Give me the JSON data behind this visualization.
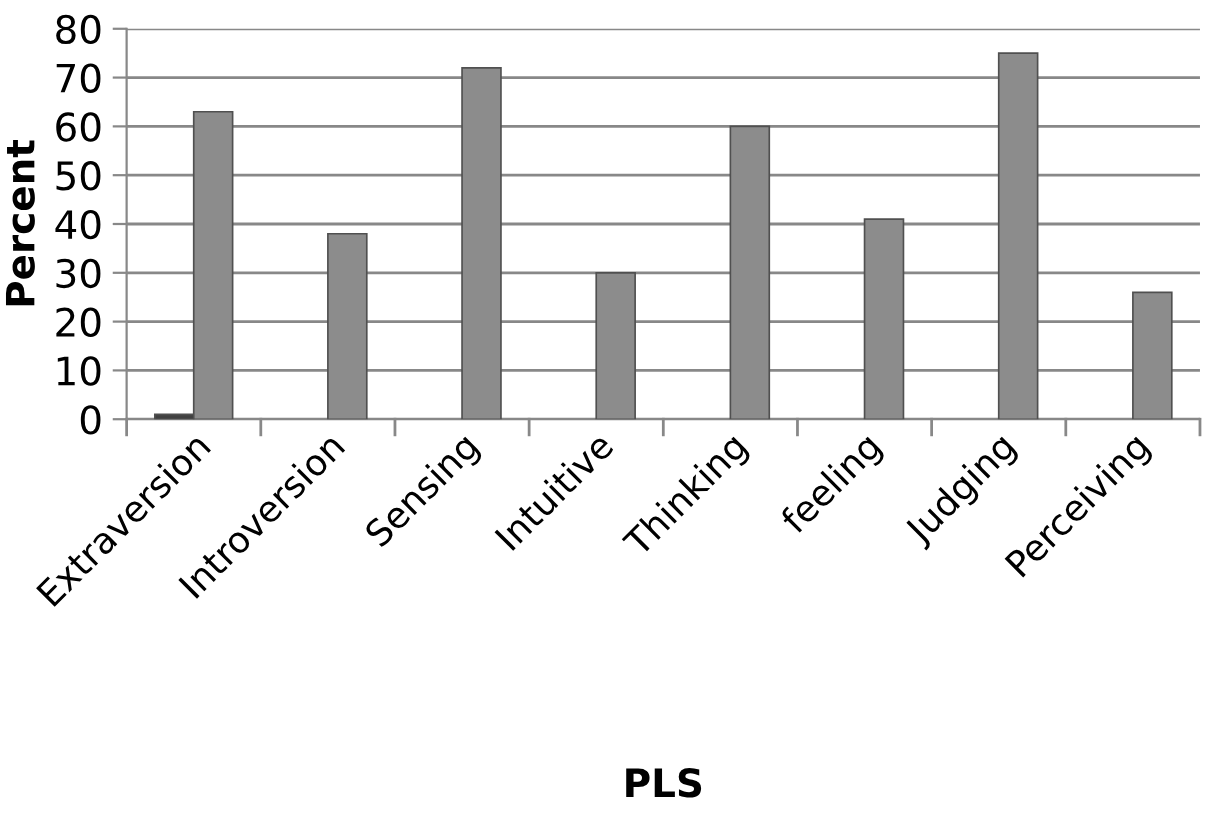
{
  "chart_data": {
    "type": "bar",
    "xlabel": "PLS",
    "ylabel": "Percent",
    "categories": [
      "Extraversion",
      "Introversion",
      "Sensing",
      "Intuitive",
      "Thinking",
      "feeling",
      "Judging",
      "Perceiving"
    ],
    "series": [
      {
        "color": "#404040",
        "values": [
          1,
          null,
          null,
          null,
          null,
          null,
          null,
          null
        ]
      },
      {
        "color": "#8c8c8c",
        "values": [
          63,
          38,
          72,
          30,
          60,
          41,
          75,
          26
        ]
      }
    ],
    "ylim": [
      0,
      80
    ],
    "yticks": [
      0,
      10,
      20,
      30,
      40,
      50,
      60,
      70,
      80
    ],
    "grid": "y"
  }
}
